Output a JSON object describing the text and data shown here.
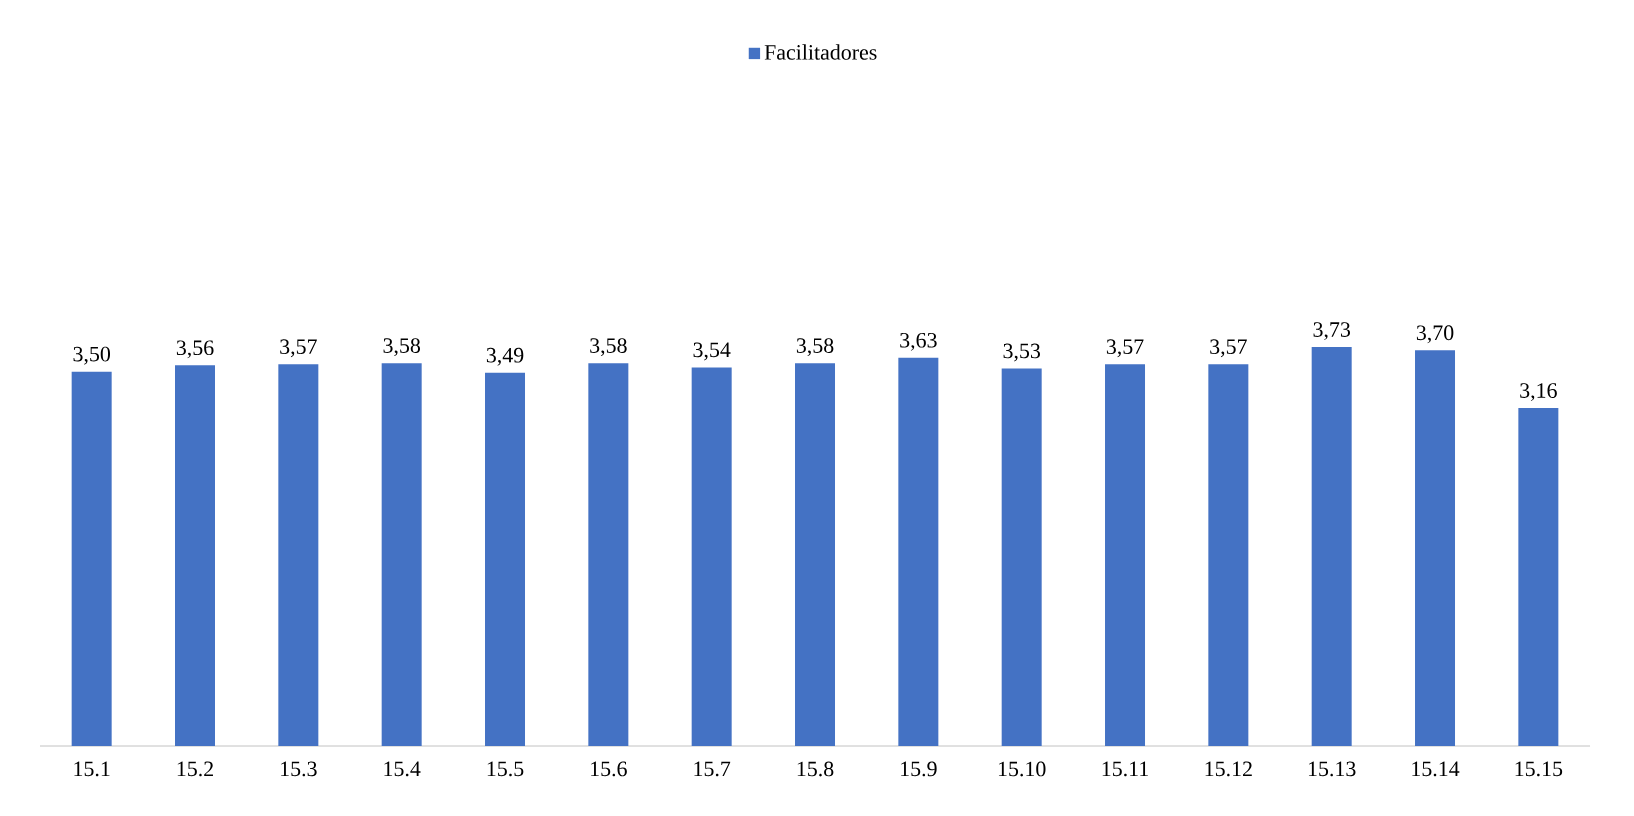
{
  "chart_data": {
    "type": "bar",
    "categories": [
      "15.1",
      "15.2",
      "15.3",
      "15.4",
      "15.5",
      "15.6",
      "15.7",
      "15.8",
      "15.9",
      "15.10",
      "15.11",
      "15.12",
      "15.13",
      "15.14",
      "15.15"
    ],
    "series": [
      {
        "name": "Facilitadores",
        "color": "#4472c4",
        "values": [
          3.5,
          3.56,
          3.57,
          3.58,
          3.49,
          3.58,
          3.54,
          3.58,
          3.63,
          3.53,
          3.57,
          3.57,
          3.73,
          3.7,
          3.16
        ],
        "value_labels": [
          "3,50",
          "3,56",
          "3,57",
          "3,58",
          "3,49",
          "3,58",
          "3,54",
          "3,58",
          "3,63",
          "3,53",
          "3,57",
          "3,57",
          "3,73",
          "3,70",
          "3,16"
        ]
      }
    ],
    "legend": "top"
  }
}
